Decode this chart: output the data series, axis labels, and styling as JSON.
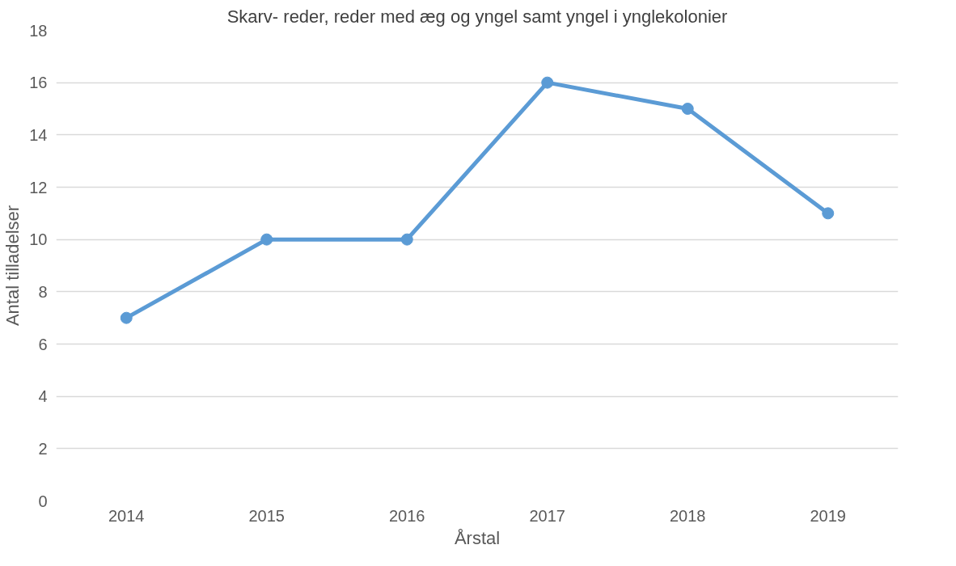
{
  "chart_data": {
    "type": "line",
    "title": "Skarv- reder, reder med æg og yngel samt yngel i ynglekolonier",
    "xlabel": "Årstal",
    "ylabel": "Antal tilladelser",
    "categories": [
      "2014",
      "2015",
      "2016",
      "2017",
      "2018",
      "2019"
    ],
    "series": [
      {
        "color": "#5b9bd5",
        "values": [
          7,
          10,
          10,
          16,
          15,
          11
        ]
      }
    ],
    "ylim": [
      0,
      18
    ],
    "yticks": [
      0,
      2,
      4,
      6,
      8,
      10,
      12,
      14,
      16,
      18
    ],
    "grid": "y",
    "marker": "circle",
    "line_style": "solid"
  }
}
